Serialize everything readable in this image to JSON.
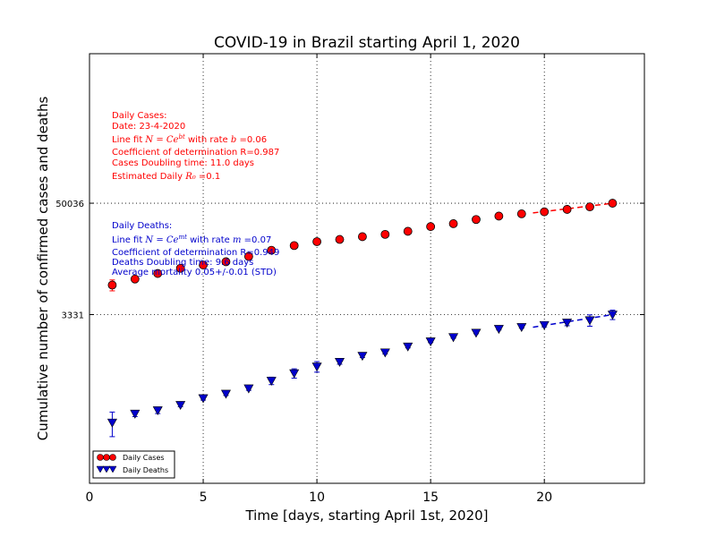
{
  "chart_data": {
    "type": "scatter",
    "title": "COVID-19 in Brazil starting April 1, 2020",
    "xlabel": "Time [days, starting April 1st, 2020]",
    "ylabel": "Cumulative number of confirmed cases and deaths",
    "x_ticks": [
      "0",
      "5",
      "10",
      "15",
      "20"
    ],
    "x_tick_values": [
      0,
      5,
      10,
      15,
      20
    ],
    "y_ticks": [
      "3331",
      "50036"
    ],
    "y_tick_values": [
      3331,
      50036
    ],
    "xlim": [
      0,
      24.4
    ],
    "ylim": [
      55,
      1900000
    ],
    "y_scale": "log",
    "grid": "dotted, at tick positions",
    "legend_position": "lower-left",
    "series": [
      {
        "name": "Daily Cases",
        "color": "#ff0000",
        "marker": "circle",
        "x": [
          1,
          2,
          3,
          4,
          5,
          6,
          7,
          8,
          9,
          10,
          11,
          12,
          13,
          14,
          15,
          16,
          17,
          18,
          19,
          20,
          21,
          22,
          23
        ],
        "y": [
          6836,
          7910,
          9056,
          10278,
          11130,
          12056,
          13717,
          15927,
          17857,
          19638,
          20727,
          22169,
          23430,
          25262,
          28320,
          30425,
          33682,
          36599,
          38654,
          40581,
          43079,
          45757,
          50036
        ],
        "error": [
          900,
          250,
          250,
          150,
          150,
          150,
          150,
          150,
          150,
          150,
          150,
          150,
          150,
          150,
          150,
          150,
          150,
          150,
          150,
          150,
          150,
          150,
          150
        ]
      },
      {
        "name": "Daily Deaths",
        "color": "#0000cc",
        "marker": "triangle-down",
        "x": [
          1,
          2,
          3,
          4,
          5,
          6,
          7,
          8,
          9,
          10,
          11,
          12,
          13,
          14,
          15,
          16,
          17,
          18,
          19,
          20,
          21,
          22,
          23
        ],
        "y": [
          241,
          299,
          325,
          370,
          436,
          486,
          553,
          667,
          800,
          941,
          1056,
          1223,
          1328,
          1532,
          1736,
          1924,
          2141,
          2354,
          2462,
          2587,
          2741,
          2906,
          3331
        ],
        "error": [
          70,
          20,
          25,
          15,
          20,
          20,
          25,
          60,
          90,
          120,
          60,
          50,
          50,
          50,
          50,
          50,
          50,
          60,
          70,
          120,
          200,
          400,
          380
        ]
      }
    ],
    "fit_lines": [
      {
        "series": "Daily Cases",
        "style": "dashed",
        "color": "#ff0000",
        "x": [
          19.5,
          23
        ],
        "y": [
          39500,
          50036
        ]
      },
      {
        "series": "Daily Deaths",
        "style": "dashed",
        "color": "#0000cc",
        "x": [
          19.5,
          23
        ],
        "y": [
          2450,
          3331
        ]
      }
    ],
    "annotations": {
      "cases": {
        "color": "#ff0000",
        "heading": "Daily Cases:",
        "date": "Date: 23-4-2020",
        "fit_pre": "Line fit ",
        "fit_formula": "N = Ce^{bt}",
        "fit_mid": " with rate ",
        "fit_param": "b",
        "fit_value": " =0.06",
        "r_line": "Coefficient of determination R=0.987",
        "doubling": "Cases Doubling time: 11.0 days",
        "r0_pre": "Estimated Daily ",
        "r0_symbol": "R₀",
        "r0_value": " =0.1"
      },
      "deaths": {
        "color": "#0000cc",
        "heading": "Daily Deaths:",
        "fit_pre": "Line fit ",
        "fit_formula": "N = Ce^{mt}",
        "fit_mid": " with rate ",
        "fit_param": "m",
        "fit_value": " =0.07",
        "r_line": "Coefficient of determination R=0.949",
        "doubling": "Deaths Doubling time: 9.6 days",
        "mortality": "Average mortality 0.05+/-0.01 (STD)"
      }
    }
  }
}
